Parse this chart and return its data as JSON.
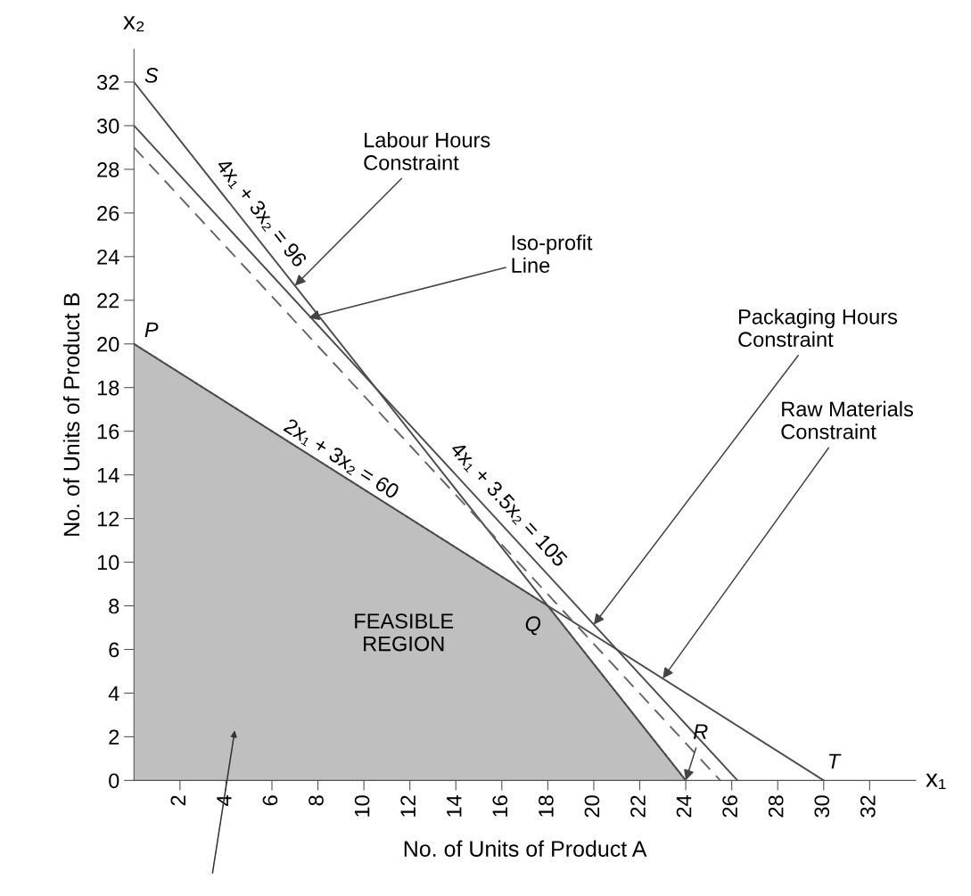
{
  "chart_data": {
    "type": "line",
    "xlabel": "No. of Units of Product A",
    "ylabel": "No. of Units of Product B",
    "xlim": [
      0,
      34
    ],
    "ylim": [
      0,
      33.5
    ],
    "xticks": [
      2,
      4,
      6,
      8,
      10,
      12,
      14,
      16,
      18,
      20,
      22,
      24,
      26,
      28,
      30,
      32
    ],
    "yticks": [
      0,
      2,
      4,
      6,
      8,
      10,
      12,
      14,
      16,
      18,
      20,
      22,
      24,
      26,
      28,
      30,
      32
    ],
    "grid": false,
    "legend": false,
    "series": [
      {
        "type": "area",
        "color": "#bfbfbf",
        "x": [
          0,
          18,
          24
        ],
        "values": [
          20,
          8,
          0
        ]
      },
      {
        "color": "#4d4d4d",
        "line_style": "solid",
        "x": [
          0,
          24
        ],
        "values": [
          32,
          0
        ]
      },
      {
        "color": "#4d4d4d",
        "line_style": "solid",
        "x": [
          0,
          26.25
        ],
        "values": [
          30,
          0
        ]
      },
      {
        "color": "#4d4d4d",
        "line_style": "solid",
        "x": [
          0,
          30
        ],
        "values": [
          20,
          0
        ]
      },
      {
        "color": "#666666",
        "line_style": "dashed",
        "x": [
          0,
          25.5
        ],
        "values": [
          29,
          0
        ]
      }
    ],
    "annotations": [
      {
        "text": "S",
        "x": 0,
        "y": 32
      },
      {
        "text": "P",
        "x": 0,
        "y": 20
      },
      {
        "text": "Q",
        "x": 18,
        "y": 8
      },
      {
        "text": "R",
        "x": 24,
        "y": 0
      },
      {
        "text": "T",
        "x": 30,
        "y": 0
      },
      "FEASIBLE\nREGION",
      {
        "text": "4x₁ + 3x₂ = 96",
        "x": 4.9,
        "y": 25.47
      },
      {
        "text": "4x₁ + 3.5x₂ = 105",
        "x": 15.7,
        "y": 12.06
      },
      {
        "text": "2x₁ + 3x₂ = 60",
        "x": 8.7,
        "y": 14.2
      },
      {
        "text": "Labour Hours\nConstraint",
        "x": 7,
        "y": 22.67
      },
      {
        "text": "Iso-profit\nLine",
        "x": 7.6,
        "y": 21.2
      },
      {
        "text": "Packaging Hours\nConstraint",
        "x": 20,
        "y": 7.14
      },
      {
        "text": "Raw Materials\nConstraint",
        "x": 23,
        "y": 4.67
      },
      "x₁",
      "x₂"
    ]
  }
}
